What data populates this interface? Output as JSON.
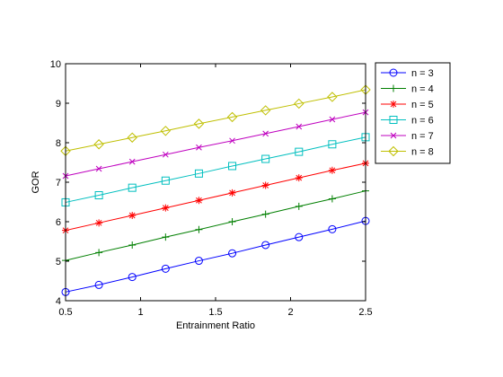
{
  "chart_data": {
    "type": "line",
    "xlabel": "Entrainment Ratio",
    "ylabel": "GOR",
    "xlim": [
      0.5,
      2.5
    ],
    "ylim": [
      4,
      10
    ],
    "x_ticks": [
      0.5,
      1,
      1.5,
      2,
      2.5
    ],
    "x_tick_labels": [
      "0.5",
      "1",
      "1.5",
      "2",
      "2.5"
    ],
    "y_ticks": [
      4,
      5,
      6,
      7,
      8,
      9,
      10
    ],
    "y_tick_labels": [
      "4",
      "5",
      "6",
      "7",
      "8",
      "9",
      "10"
    ],
    "grid": false,
    "legend_position": "outside-top-right",
    "x": [
      0.5,
      0.7222,
      0.9444,
      1.1667,
      1.3889,
      1.6111,
      1.8333,
      2.0556,
      2.2778,
      2.5
    ],
    "series": [
      {
        "name": "n = 3",
        "color": "#0000ff",
        "marker": "circle",
        "values": [
          4.22,
          4.4,
          4.6,
          4.81,
          5.01,
          5.2,
          5.41,
          5.61,
          5.81,
          6.02
        ]
      },
      {
        "name": "n = 4",
        "color": "#007f00",
        "marker": "plus",
        "values": [
          5.02,
          5.22,
          5.41,
          5.61,
          5.8,
          6.0,
          6.19,
          6.39,
          6.58,
          6.78
        ]
      },
      {
        "name": "n = 5",
        "color": "#ff0000",
        "marker": "asterisk",
        "values": [
          5.78,
          5.97,
          6.16,
          6.35,
          6.54,
          6.73,
          6.92,
          7.11,
          7.3,
          7.48
        ]
      },
      {
        "name": "n = 6",
        "color": "#00bfbf",
        "marker": "square",
        "values": [
          6.49,
          6.67,
          6.86,
          7.04,
          7.22,
          7.41,
          7.59,
          7.77,
          7.96,
          8.14
        ]
      },
      {
        "name": "n = 7",
        "color": "#bf00bf",
        "marker": "x",
        "values": [
          7.16,
          7.34,
          7.52,
          7.7,
          7.88,
          8.05,
          8.23,
          8.41,
          8.59,
          8.77
        ]
      },
      {
        "name": "n = 8",
        "color": "#bfbf00",
        "marker": "diamond",
        "values": [
          7.79,
          7.96,
          8.13,
          8.3,
          8.48,
          8.65,
          8.82,
          8.99,
          9.16,
          9.34
        ]
      }
    ]
  }
}
